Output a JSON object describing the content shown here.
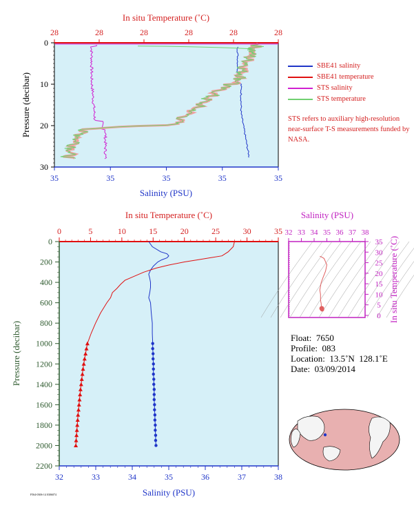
{
  "top_plot": {
    "temp_axis_label": "In situ Temperature (˚C)",
    "temp_ticks": [
      "28",
      "28",
      "28",
      "28",
      "28",
      "28"
    ],
    "sal_axis_label": "Salinity (PSU)",
    "sal_ticks": [
      "35",
      "35",
      "35",
      "35",
      "35"
    ],
    "pressure_label": "Pressure (decibar)",
    "pressure_ticks": [
      "0",
      "10",
      "20",
      "30"
    ]
  },
  "legend": [
    {
      "label": "SBE41 salinity",
      "color": "#1f35c8"
    },
    {
      "label": "SBE41 temperature",
      "color": "#e01010"
    },
    {
      "label": "STS salinity",
      "color": "#d020d0"
    },
    {
      "label": "STS temperature",
      "color": "#70d070"
    }
  ],
  "note": "STS refers to auxiliary high-resolution near-surface T-S measurements funded by NASA.",
  "main_plot": {
    "temp_axis_label": "In situ Temperature (˚C)",
    "temp_ticks": [
      "0",
      "5",
      "10",
      "15",
      "20",
      "25",
      "30",
      "35"
    ],
    "sal_axis_label": "Salinity (PSU)",
    "sal_ticks": [
      "32",
      "33",
      "34",
      "35",
      "36",
      "37",
      "38"
    ],
    "pressure_label": "Pressure (decibar)",
    "pressure_ticks": [
      "0",
      "200",
      "400",
      "600",
      "800",
      "1000",
      "1200",
      "1400",
      "1600",
      "1800",
      "2000",
      "2200"
    ]
  },
  "ts_plot": {
    "sal_axis_label": "Salinity (PSU)",
    "sal_ticks": [
      "32",
      "33",
      "34",
      "35",
      "36",
      "37",
      "38"
    ],
    "temp_axis_label": "In situ Temperature (˚C)",
    "temp_ticks": [
      "0",
      "5",
      "10",
      "15",
      "20",
      "25",
      "30",
      "35"
    ]
  },
  "info": {
    "float": "Float:  7650",
    "profile": "Profile:  083",
    "location": "Location:  13.5˚N  128.1˚E",
    "date": "Date:  03/09/2014"
  },
  "footer_tiny": "F564-0306-14 0306074",
  "colors": {
    "salinity": "#1f35c8",
    "temperature": "#e01010",
    "sts_salinity": "#d020d0",
    "sts_temperature": "#70d070",
    "plot_bg": "#d6f0f8",
    "axis_red": "#d42020",
    "axis_blue": "#1f35c8",
    "axis_magenta": "#c020c0",
    "axis_green": "#2e5a2e"
  },
  "chart_data": [
    {
      "type": "line",
      "title": "",
      "xlabel": "Salinity (PSU)",
      "x2label": "In situ Temperature (˚C)",
      "ylabel": "Pressure (decibar)",
      "xlim": [
        32,
        38
      ],
      "x2lim": [
        0,
        35
      ],
      "ylim": [
        2200,
        0
      ],
      "series": [
        {
          "name": "Salinity",
          "axis": "salinity",
          "pressure": [
            0,
            50,
            100,
            120,
            140,
            160,
            180,
            200,
            240,
            280,
            320,
            360,
            400,
            450,
            500,
            550,
            600,
            700,
            800,
            900,
            1000
          ],
          "values": [
            34.45,
            34.55,
            34.78,
            34.95,
            35.0,
            34.95,
            34.8,
            34.7,
            34.58,
            34.5,
            34.45,
            34.48,
            34.5,
            34.5,
            34.48,
            34.45,
            34.5,
            34.52,
            34.55,
            34.55,
            34.56
          ]
        },
        {
          "name": "Temperature",
          "axis": "temperature",
          "pressure": [
            0,
            50,
            100,
            140,
            160,
            180,
            200,
            230,
            260,
            300,
            340,
            380,
            420,
            460,
            500,
            550,
            600,
            700,
            800,
            900,
            1000
          ],
          "values": [
            28.0,
            27.8,
            27.0,
            26.0,
            24.0,
            22.0,
            20.0,
            17.5,
            15.5,
            13.5,
            12.0,
            10.5,
            9.8,
            9.2,
            8.5,
            8.2,
            7.6,
            6.6,
            5.8,
            5.1,
            4.5
          ]
        },
        {
          "name": "Salinity (bottle points)",
          "axis": "salinity",
          "pressure": [
            1000,
            1050,
            1100,
            1150,
            1200,
            1250,
            1300,
            1350,
            1400,
            1450,
            1500,
            1550,
            1600,
            1650,
            1700,
            1750,
            1800,
            1850,
            1900,
            1950,
            2000
          ],
          "values": [
            34.56,
            34.56,
            34.57,
            34.57,
            34.58,
            34.58,
            34.58,
            34.59,
            34.59,
            34.6,
            34.6,
            34.6,
            34.61,
            34.61,
            34.62,
            34.62,
            34.63,
            34.63,
            34.64,
            34.64,
            34.65
          ]
        },
        {
          "name": "Temperature (bottle points)",
          "axis": "temperature",
          "pressure": [
            1000,
            1050,
            1100,
            1150,
            1200,
            1250,
            1300,
            1350,
            1400,
            1450,
            1500,
            1550,
            1600,
            1650,
            1700,
            1750,
            1800,
            1850,
            1900,
            1950,
            2000
          ],
          "values": [
            4.5,
            4.35,
            4.2,
            4.05,
            3.92,
            3.8,
            3.7,
            3.6,
            3.5,
            3.4,
            3.32,
            3.24,
            3.16,
            3.08,
            3.0,
            2.94,
            2.88,
            2.82,
            2.76,
            2.7,
            2.65
          ]
        }
      ]
    },
    {
      "type": "line",
      "title": "",
      "xlabel": "Salinity (PSU)",
      "ylabel": "In situ Temperature (˚C)",
      "xlim": [
        32,
        38
      ],
      "ylim": [
        -1,
        35
      ],
      "series": [
        {
          "name": "T-S",
          "sal": [
            34.45,
            34.55,
            34.78,
            35.0,
            34.9,
            34.7,
            34.55,
            34.45,
            34.5,
            34.5,
            34.52,
            34.55,
            34.56,
            34.6,
            34.65
          ],
          "temp": [
            28.0,
            27.8,
            27.0,
            24.0,
            21.0,
            18.0,
            15.5,
            12.0,
            10.0,
            8.0,
            6.6,
            5.8,
            4.5,
            3.5,
            2.65
          ]
        }
      ]
    }
  ]
}
